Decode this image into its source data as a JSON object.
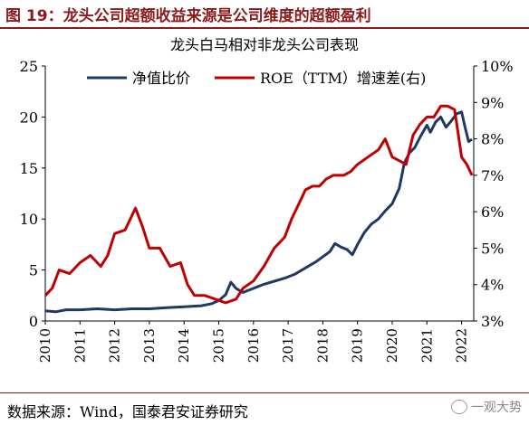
{
  "figure_title": "图 19：龙头公司超额收益来源是公司维度的超额盈利",
  "source": "数据来源：Wind，国泰君安证券研究",
  "watermark": "一观大势",
  "chart_data": {
    "type": "line",
    "title": "龙头白马相对非龙头公司表现",
    "legend_placement": "top",
    "x_ticks": [
      "2010",
      "2011",
      "2012",
      "2013",
      "2014",
      "2015",
      "2016",
      "2017",
      "2018",
      "2019",
      "2020",
      "2021",
      "2022"
    ],
    "y_left": {
      "range": [
        0,
        25
      ],
      "ticks": [
        "0",
        "5",
        "10",
        "15",
        "20",
        "25"
      ]
    },
    "y_right": {
      "range": [
        3,
        10
      ],
      "ticks": [
        "3%",
        "4%",
        "5%",
        "6%",
        "7%",
        "8%",
        "9%",
        "10%"
      ]
    },
    "series": [
      {
        "name": "净值比价",
        "axis": "left",
        "color": "#1f3864",
        "x": [
          2010.0,
          2010.3,
          2010.6,
          2011.0,
          2011.5,
          2012.0,
          2012.5,
          2013.0,
          2013.5,
          2014.0,
          2014.5,
          2014.8,
          2015.0,
          2015.2,
          2015.35,
          2015.5,
          2015.7,
          2016.0,
          2016.3,
          2016.6,
          2016.9,
          2017.2,
          2017.5,
          2017.8,
          2018.0,
          2018.2,
          2018.35,
          2018.5,
          2018.7,
          2018.85,
          2019.0,
          2019.2,
          2019.4,
          2019.6,
          2019.8,
          2020.0,
          2020.2,
          2020.35,
          2020.5,
          2020.65,
          2020.8,
          2021.0,
          2021.1,
          2021.25,
          2021.4,
          2021.55,
          2021.7,
          2021.85,
          2022.0,
          2022.1,
          2022.2,
          2022.3
        ],
        "y": [
          1.0,
          0.9,
          1.1,
          1.1,
          1.2,
          1.1,
          1.2,
          1.2,
          1.3,
          1.4,
          1.5,
          1.7,
          2.0,
          2.6,
          3.8,
          3.2,
          2.8,
          3.2,
          3.6,
          3.9,
          4.2,
          4.6,
          5.2,
          5.8,
          6.3,
          6.8,
          7.6,
          7.3,
          7.0,
          6.5,
          7.5,
          8.7,
          9.5,
          10.0,
          10.8,
          11.5,
          13.0,
          15.5,
          16.5,
          17.0,
          18.0,
          19.2,
          18.5,
          19.5,
          20.0,
          19.0,
          19.6,
          20.3,
          20.5,
          19.0,
          17.6,
          17.8
        ]
      },
      {
        "name": "ROE（TTM）增速差(右)",
        "axis": "right",
        "color": "#c00000",
        "x": [
          2010.0,
          2010.2,
          2010.4,
          2010.7,
          2011.0,
          2011.3,
          2011.6,
          2011.8,
          2012.0,
          2012.3,
          2012.6,
          2012.8,
          2013.0,
          2013.3,
          2013.6,
          2013.9,
          2014.1,
          2014.3,
          2014.6,
          2014.9,
          2015.2,
          2015.5,
          2015.7,
          2016.0,
          2016.3,
          2016.6,
          2016.9,
          2017.1,
          2017.3,
          2017.5,
          2017.7,
          2017.9,
          2018.1,
          2018.3,
          2018.6,
          2018.8,
          2019.0,
          2019.3,
          2019.6,
          2019.8,
          2020.0,
          2020.2,
          2020.4,
          2020.6,
          2020.8,
          2021.0,
          2021.2,
          2021.4,
          2021.6,
          2021.8,
          2022.0,
          2022.15,
          2022.3
        ],
        "y": [
          3.7,
          3.9,
          4.4,
          4.3,
          4.6,
          4.8,
          4.5,
          4.8,
          5.4,
          5.5,
          6.1,
          5.6,
          5.0,
          5.0,
          4.5,
          4.6,
          4.0,
          3.7,
          3.7,
          3.6,
          3.5,
          3.6,
          3.9,
          4.1,
          4.5,
          5.0,
          5.3,
          5.8,
          6.2,
          6.6,
          6.7,
          6.7,
          6.9,
          7.0,
          7.0,
          7.1,
          7.3,
          7.5,
          7.7,
          8.0,
          7.5,
          7.4,
          7.3,
          8.1,
          8.4,
          8.6,
          8.6,
          8.9,
          8.9,
          8.8,
          7.5,
          7.3,
          7.0
        ]
      }
    ]
  }
}
